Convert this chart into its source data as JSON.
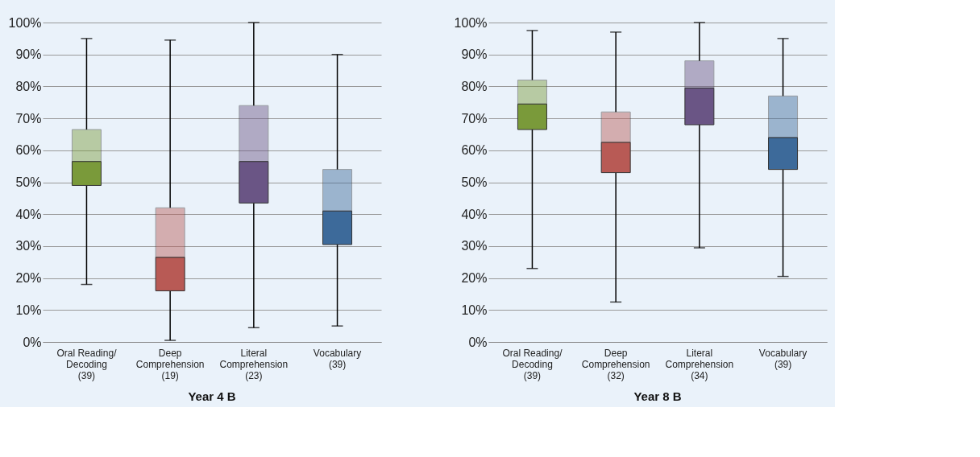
{
  "chart_data": [
    {
      "type": "box",
      "title": "Year 4 B",
      "categories": [
        "Oral Reading/\nDecoding\n(39)",
        "Deep\nComprehension\n(19)",
        "Literal\nComprehension\n(23)",
        "Vocabulary\n\n(39)"
      ],
      "boxes": [
        {
          "low": 18,
          "q1": 49,
          "median": 56.5,
          "q3": 66.5,
          "high": 95
        },
        {
          "low": 0.5,
          "q1": 16,
          "median": 26.5,
          "q3": 42,
          "high": 94.5
        },
        {
          "low": 4.5,
          "q1": 43.5,
          "median": 56.5,
          "q3": 74,
          "high": 100
        },
        {
          "low": 5,
          "q1": 30.5,
          "median": 41,
          "q3": 54,
          "high": 90
        }
      ],
      "colors": [
        "#7a9a3a",
        "#b85a55",
        "#6a5585",
        "#3d6a9a"
      ],
      "ylim": [
        0,
        100
      ],
      "yticks": [
        {
          "value": 0,
          "label": "0%"
        },
        {
          "value": 10,
          "label": "10%"
        },
        {
          "value": 20,
          "label": "20%"
        },
        {
          "value": 30,
          "label": "30%"
        },
        {
          "value": 40,
          "label": "40%"
        },
        {
          "value": 50,
          "label": "50%"
        },
        {
          "value": 60,
          "label": "60%"
        },
        {
          "value": 70,
          "label": "70%"
        },
        {
          "value": 80,
          "label": "80%"
        },
        {
          "value": 90,
          "label": "90%"
        },
        {
          "value": 100,
          "label": "100%"
        }
      ],
      "grid": "y"
    },
    {
      "type": "box",
      "title": "Year 8 B",
      "categories": [
        "Oral Reading/\nDecoding\n(39)",
        "Deep\nComprehension\n(32)",
        "Literal\nComprehension\n(34)",
        "Vocabulary\n\n(39)"
      ],
      "boxes": [
        {
          "low": 23,
          "q1": 66.5,
          "median": 74.5,
          "q3": 82,
          "high": 97.5
        },
        {
          "low": 12.5,
          "q1": 53,
          "median": 62.5,
          "q3": 72,
          "high": 97
        },
        {
          "low": 29.5,
          "q1": 68,
          "median": 79.5,
          "q3": 88,
          "high": 100
        },
        {
          "low": 20.5,
          "q1": 54,
          "median": 64,
          "q3": 77,
          "high": 95
        }
      ],
      "colors": [
        "#7a9a3a",
        "#b85a55",
        "#6a5585",
        "#3d6a9a"
      ],
      "ylim": [
        0,
        100
      ],
      "yticks": [
        {
          "value": 0,
          "label": "0%"
        },
        {
          "value": 10,
          "label": "10%"
        },
        {
          "value": 20,
          "label": "20%"
        },
        {
          "value": 30,
          "label": "30%"
        },
        {
          "value": 40,
          "label": "40%"
        },
        {
          "value": 50,
          "label": "50%"
        },
        {
          "value": 60,
          "label": "60%"
        },
        {
          "value": 70,
          "label": "70%"
        },
        {
          "value": 80,
          "label": "80%"
        },
        {
          "value": 90,
          "label": "90%"
        },
        {
          "value": 100,
          "label": "100%"
        }
      ],
      "grid": "y"
    }
  ]
}
